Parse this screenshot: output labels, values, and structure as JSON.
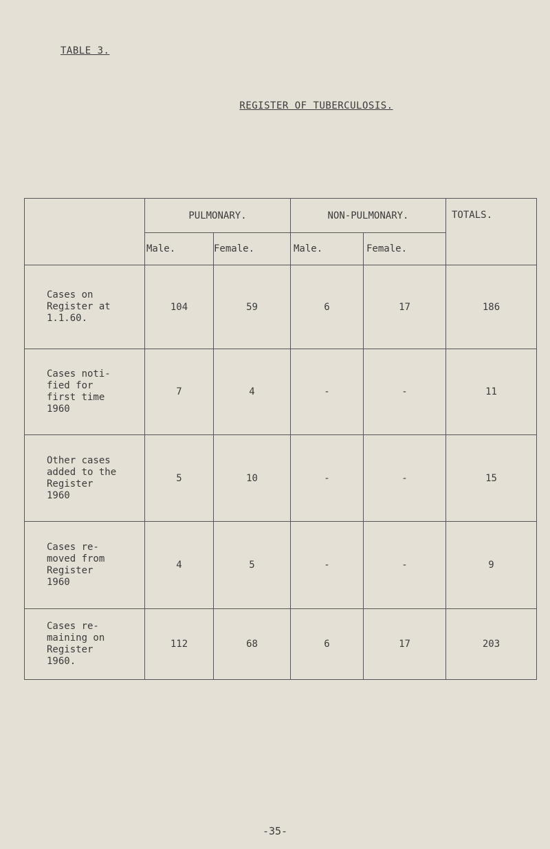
{
  "table_label": "TABLE 3.",
  "title": "REGISTER OF TUBERCULOSIS.",
  "headers": {
    "pulmonary": "PULMONARY.",
    "non_pulmonary": "NON-PULMONARY.",
    "totals": "TOTALS.",
    "male": "Male.",
    "female": "Female."
  },
  "rows": [
    {
      "label": "Cases on Register at 1.1.60.",
      "pm": "104",
      "pf": "59",
      "nm": "6",
      "nf": "17",
      "total": "186"
    },
    {
      "label": "Cases noti- fied for first time 1960",
      "pm": "7",
      "pf": "4",
      "nm": "-",
      "nf": "-",
      "total": "11"
    },
    {
      "label": "Other cases added to the Register 1960",
      "pm": "5",
      "pf": "10",
      "nm": "-",
      "nf": "-",
      "total": "15"
    },
    {
      "label": "Cases re- moved from Register 1960",
      "pm": "4",
      "pf": "5",
      "nm": "-",
      "nf": "-",
      "total": "9"
    },
    {
      "label": "Cases re- maining on Register 1960.",
      "pm": "112",
      "pf": "68",
      "nm": "6",
      "nf": "17",
      "total": "203"
    }
  ],
  "page_number": "-35-"
}
